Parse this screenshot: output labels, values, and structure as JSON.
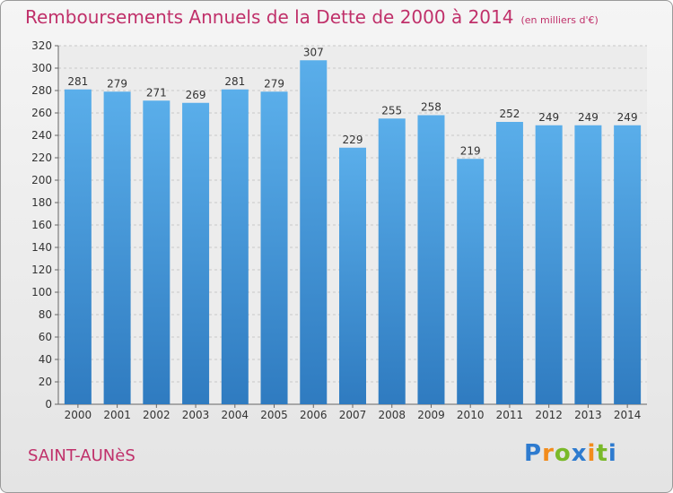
{
  "title": "Remboursements Annuels de la Dette de 2000 à 2014",
  "unit": "(en milliers d'€)",
  "commune": "SAINT-AUNèS",
  "logo": {
    "letters": [
      "P",
      "r",
      "o",
      "x",
      "i",
      "t",
      "i"
    ],
    "colors": [
      "#2e7bcf",
      "#f28c1c",
      "#7ab929",
      "#2e7bcf",
      "#f28c1c",
      "#7ab929",
      "#2e7bcf"
    ]
  },
  "colors": {
    "bar": "#3d8fd6",
    "text": "#c0306a"
  },
  "chart_data": {
    "type": "bar",
    "title": "Remboursements Annuels de la Dette de 2000 à 2014",
    "categories": [
      "2000",
      "2001",
      "2002",
      "2003",
      "2004",
      "2005",
      "2006",
      "2007",
      "2008",
      "2009",
      "2010",
      "2011",
      "2012",
      "2013",
      "2014"
    ],
    "values": [
      281,
      279,
      271,
      269,
      281,
      279,
      307,
      229,
      255,
      258,
      219,
      252,
      249,
      249,
      249
    ],
    "ylim": [
      0,
      320
    ],
    "yticks": [
      0,
      20,
      40,
      60,
      80,
      100,
      120,
      140,
      160,
      180,
      200,
      220,
      240,
      260,
      280,
      300,
      320
    ],
    "grid": true,
    "xlabel": "",
    "ylabel": ""
  }
}
